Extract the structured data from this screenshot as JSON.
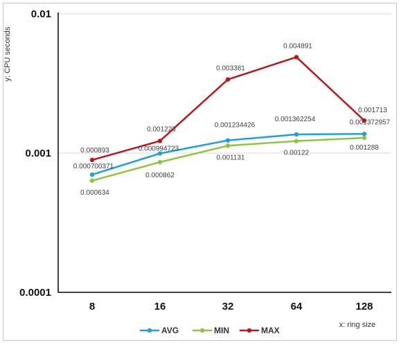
{
  "chart_data": {
    "type": "line",
    "scale_y": "log",
    "ylim": [
      0.0001,
      0.01
    ],
    "y_ticks": [
      "0.01",
      "0.001",
      "0.0001"
    ],
    "ylabel": "y: CPU seconds",
    "xlabel": "x: ring size",
    "categories": [
      "8",
      "16",
      "32",
      "64",
      "128"
    ],
    "grid": "horizontal",
    "legend_position": "bottom",
    "series": [
      {
        "name": "AVG",
        "color": "#1ba1e2",
        "values": [
          0.000700371,
          0.000994723,
          0.001234426,
          0.001362254,
          0.001372957
        ],
        "labels": [
          "0.000700371",
          "0.000994723",
          "0.001234426",
          "0.001362254",
          "0.001372957"
        ]
      },
      {
        "name": "MIN",
        "color": "#8dc63f",
        "values": [
          0.000634,
          0.000862,
          0.001131,
          0.00122,
          0.001288
        ],
        "labels": [
          "0.000634",
          "0.000862",
          "0.001131",
          "0.00122",
          "0.001288"
        ]
      },
      {
        "name": "MAX",
        "color": "#c0141c",
        "values": [
          0.000893,
          0.001223,
          0.003381,
          0.004891,
          0.001713
        ],
        "labels": [
          "0.000893",
          "0.001223",
          "0.003381",
          "0.004891",
          "0.001713"
        ]
      }
    ]
  }
}
